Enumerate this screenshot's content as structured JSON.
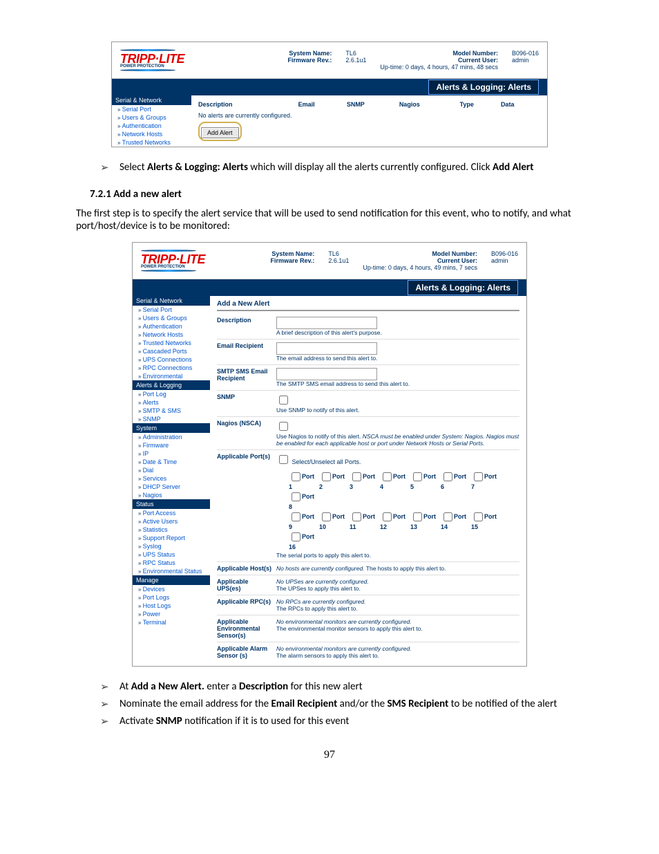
{
  "ss1": {
    "system_name_label": "System Name:",
    "system_name": "TL6",
    "firmware_label": "Firmware Rev.:",
    "firmware": "2.6.1u1",
    "model_label": "Model Number:",
    "model": "B096-016",
    "user_label": "Current User:",
    "user": "admin",
    "uptime": "Up-time: 0 days, 4 hours, 47 mins, 48 secs",
    "banner": "Alerts & Logging: Alerts",
    "sidebar_head": "Serial & Network",
    "sidebar": [
      "Serial Port",
      "Users & Groups",
      "Authentication",
      "Network Hosts",
      "Trusted Networks"
    ],
    "cols": [
      "Description",
      "Email",
      "SNMP",
      "Nagios",
      "Type",
      "Data"
    ],
    "noalert": "No alerts are currently configured.",
    "addbtn": "Add Alert"
  },
  "instr1": "Select <b>Alerts & Logging: Alerts</b> which will display all the alerts currently configured. Click <b>Add Alert</b>",
  "heading": "7.2.1   Add a new alert",
  "para1": "The first step is to specify the alert service that will be used to send notification for this event, who to notify, and what port/host/device is to be monitored:",
  "ss2": {
    "system_name_label": "System Name:",
    "system_name": "TL6",
    "firmware_label": "Firmware Rev.:",
    "firmware": "2.6.1u1",
    "model_label": "Model Number:",
    "model": "B096-016",
    "user_label": "Current User:",
    "user": "admin",
    "uptime": "Up-time: 0 days, 4 hours, 49 mins, 7 secs",
    "banner": "Alerts & Logging: Alerts",
    "groups": [
      {
        "head": "Serial & Network",
        "items": [
          "Serial Port",
          "Users & Groups",
          "Authentication",
          "Network Hosts",
          "Trusted Networks",
          "Cascaded Ports",
          "UPS Connections",
          "RPC Connections",
          "Environmental"
        ]
      },
      {
        "head": "Alerts & Logging",
        "items": [
          "Port Log",
          "Alerts",
          "SMTP & SMS",
          "SNMP"
        ]
      },
      {
        "head": "System",
        "items": [
          "Administration",
          "Firmware",
          "IP",
          "Date & Time",
          "Dial",
          "Services",
          "DHCP Server",
          "Nagios"
        ]
      },
      {
        "head": "Status",
        "items": [
          "Port Access",
          "Active Users",
          "Statistics",
          "Support Report",
          "Syslog",
          "UPS Status",
          "RPC Status",
          "Environmental Status"
        ]
      },
      {
        "head": "Manage",
        "items": [
          "Devices",
          "Port Logs",
          "Host Logs",
          "Power",
          "Terminal"
        ]
      }
    ],
    "title": "Add a New Alert",
    "desc_label": "Description",
    "desc_hint": "A brief description of this alert's purpose.",
    "email_label": "Email Recipient",
    "email_hint": "The email address to send this alert to.",
    "sms_label": "SMTP SMS Email Recipient",
    "sms_hint": "The SMTP SMS email address to send this alert to.",
    "snmp_label": "SNMP",
    "snmp_hint": "Use SNMP to notify of this alert.",
    "nagios_label": "Nagios (NSCA)",
    "nagios_hint": "Use Nagios to notify of this alert. <i>NSCA must be enabled under System: Nagios. Nagios must be enabled for each applicable host or port under Network Hosts or Serial Ports.</i>",
    "ports_label": "Applicable Port(s)",
    "ports_select": "Select/Unselect all Ports.",
    "ports": [
      1,
      2,
      3,
      4,
      5,
      6,
      7,
      8,
      9,
      10,
      11,
      12,
      13,
      14,
      15,
      16
    ],
    "ports_hint": "The serial ports to apply this alert to.",
    "host_label": "Applicable Host(s)",
    "host_hint": "<i>No hosts are currently configured.</i> The hosts to apply this alert to.",
    "ups_label": "Applicable UPS(es)",
    "ups_hint": "<i>No UPSes are currently configured.</i><br>The UPSes to apply this alert to.",
    "rpc_label": "Applicable RPC(s)",
    "rpc_hint": "<i>No RPCs are currently configured.</i><br>The RPCs to apply this alert to.",
    "env_label": "Applicable Environmental Sensor(s)",
    "env_hint": "<i>No environmental monitors are currently configured.</i><br>The environmental monitor sensors to apply this alert to.",
    "alarm_label": "Applicable Alarm Sensor (s)",
    "alarm_hint": "<i>No environmental monitors are currently configured.</i><br>The alarm sensors to apply this alert to."
  },
  "instr2": "At <b>Add a New Alert.</b> enter a <b>Description</b> for this new alert",
  "instr3": "Nominate the email address for the <b>Email Recipient</b> and/or the <b>SMS Recipient</b> to be notified of the alert",
  "instr4": "Activate <b>SNMP</b> notification if it is to used for this event",
  "pagenum": "97"
}
